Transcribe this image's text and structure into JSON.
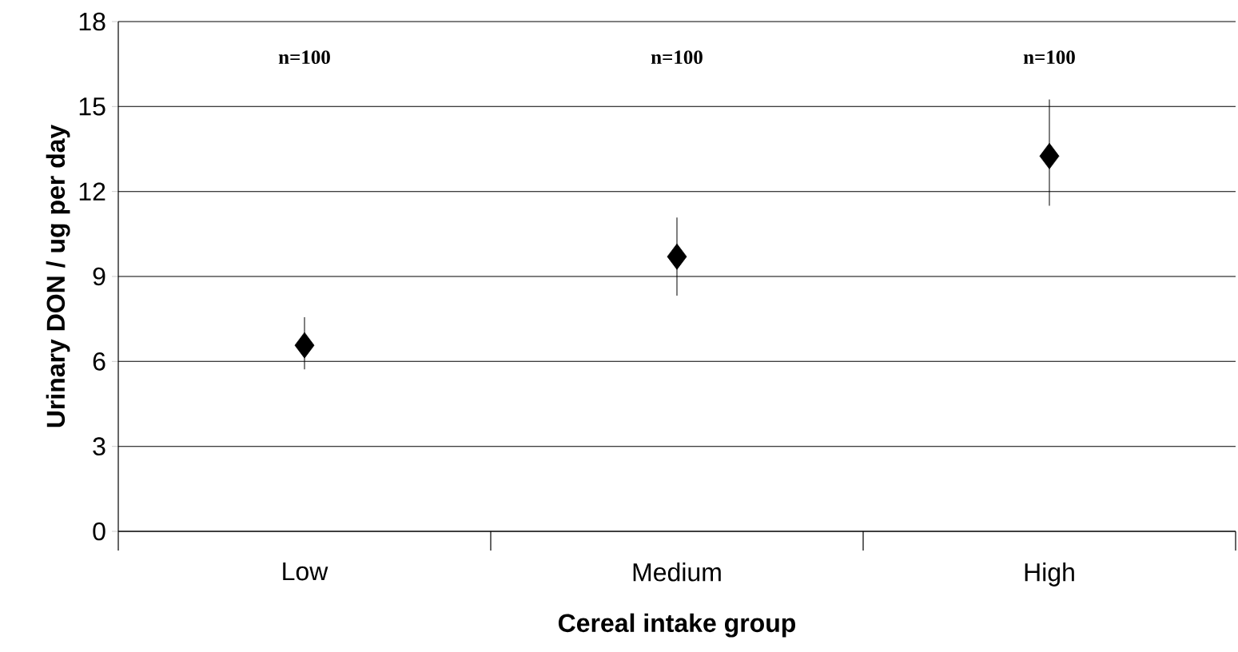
{
  "chart_data": {
    "type": "scatter",
    "xlabel": "Cereal intake group",
    "ylabel": "Urinary DON / ug  per day",
    "categories": [
      "Low",
      "Medium",
      "High"
    ],
    "series": [
      {
        "color": "#000000",
        "values": [
          6.57,
          9.7,
          13.25
        ],
        "errors": [
          [
            5.72,
            7.56
          ],
          [
            8.32,
            11.08
          ],
          [
            11.5,
            15.25
          ]
        ]
      }
    ],
    "marker": "diamond",
    "ylim": [
      0,
      18
    ],
    "yticks": [
      0,
      3,
      6,
      9,
      12,
      15,
      18
    ],
    "grid": "y",
    "annotations": [
      "n=100",
      "n=100",
      "n=100"
    ]
  }
}
